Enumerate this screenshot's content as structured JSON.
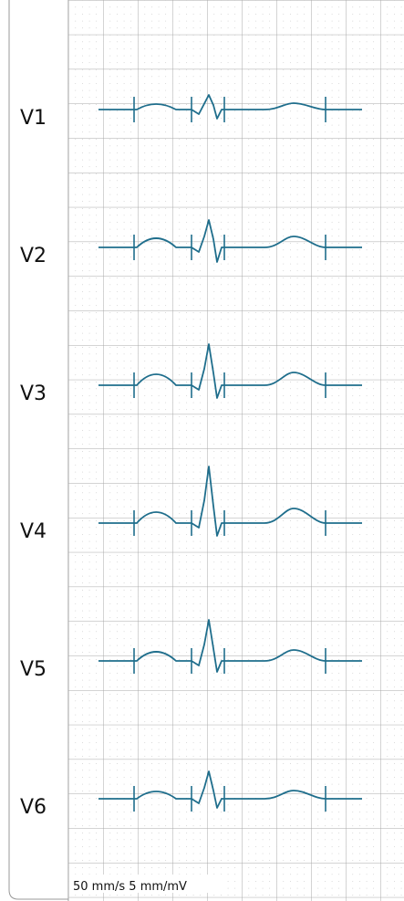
{
  "leads": [
    "V1",
    "V2",
    "V3",
    "V4",
    "V5",
    "V6"
  ],
  "footer": "50 mm/s 5 mm/mV"
}
